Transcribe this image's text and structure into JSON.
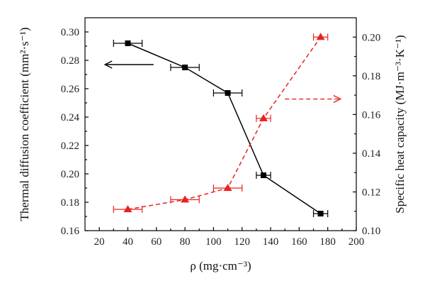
{
  "chart_data": {
    "type": "line",
    "x": [
      40,
      80,
      110,
      135,
      175
    ],
    "x_error": [
      10,
      10,
      10,
      5,
      5
    ],
    "xlabel": "ρ (mg·cm⁻³)",
    "xlim": [
      10,
      200
    ],
    "xticks": [
      "20",
      "40",
      "60",
      "80",
      "100",
      "120",
      "140",
      "160",
      "180",
      "200"
    ],
    "ylabel_left": "Thermal diffusion coefficient (mm²·s⁻¹)",
    "ylim_left": [
      0.16,
      0.31
    ],
    "yticks_left": [
      "0.16",
      "0.18",
      "0.20",
      "0.22",
      "0.24",
      "0.26",
      "0.28",
      "0.30"
    ],
    "ylabel_right": "Specific heat capacity (MJ·m⁻³·K⁻¹)",
    "ylim_right": [
      0.1,
      0.21
    ],
    "yticks_right": [
      "0.10",
      "0.12",
      "0.14",
      "0.16",
      "0.18",
      "0.20"
    ],
    "series": [
      {
        "axis": "left",
        "values": [
          0.292,
          0.275,
          0.257,
          0.199,
          0.172
        ],
        "color": "#000000",
        "line_style": "solid",
        "marker": "square"
      },
      {
        "axis": "right",
        "values": [
          0.111,
          0.116,
          0.122,
          0.158,
          0.2
        ],
        "color": "#e8231f",
        "line_style": "dashed",
        "marker": "triangle"
      }
    ],
    "annotations": [
      {
        "type": "arrow",
        "direction": "left",
        "series_axis": "left",
        "color": "#000000"
      },
      {
        "type": "arrow",
        "direction": "right",
        "series_axis": "right",
        "color": "#e8231f",
        "style": "dashed"
      }
    ],
    "grid": false,
    "legend": "none"
  }
}
